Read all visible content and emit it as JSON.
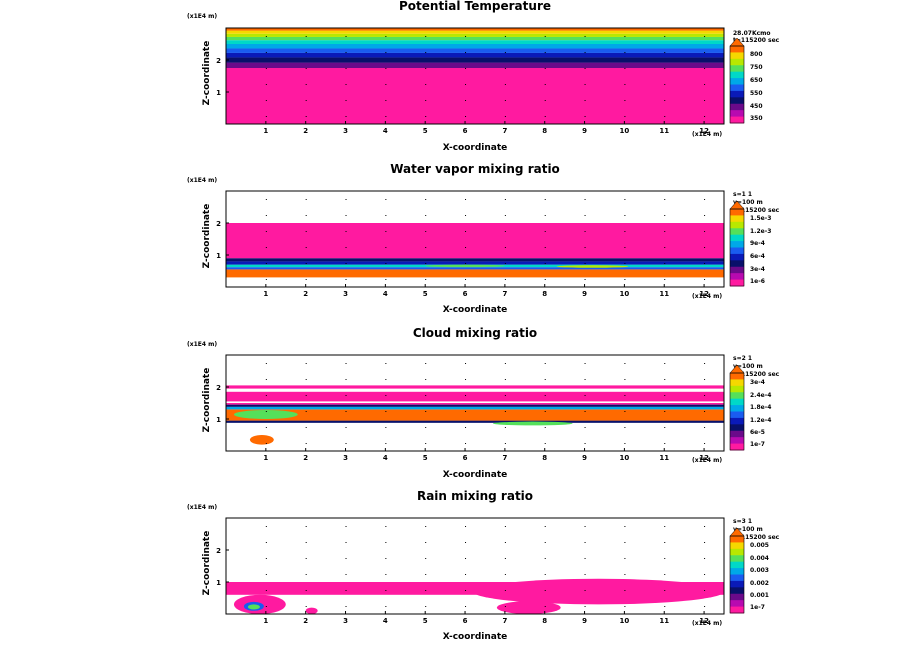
{
  "unit_label": "(x1E4 m)",
  "panels": [
    {
      "title": "Potential Temperature",
      "xlabel": "X-coordinate",
      "ylabel": "Z-coordinate",
      "info": [
        "28.07Kcmo",
        "t=115200 sec"
      ],
      "legend_labels": [
        "800",
        "750",
        "650",
        "550",
        "450",
        "350"
      ],
      "colors": [
        "#ff6a00",
        "#f5d800",
        "#b8e800",
        "#55e05a",
        "#00d8c8",
        "#00a8e8",
        "#1a5cf0",
        "#0a1ab8",
        "#08106a",
        "#6a0a8a",
        "#b80ab0",
        "#ff1aa0"
      ]
    },
    {
      "title": "Water vapor mixing ratio",
      "xlabel": "X-coordinate",
      "ylabel": "Z-coordinate",
      "info": [
        "s=1 1",
        "y=100 m",
        "t=115200 sec"
      ],
      "legend_labels": [
        "1.5e-3",
        "1.2e-3",
        "9e-4",
        "6e-4",
        "3e-4",
        "1e-6"
      ],
      "colors": [
        "#ff6a00",
        "#f5d800",
        "#b8e800",
        "#55e05a",
        "#00d8c8",
        "#00a8e8",
        "#1a5cf0",
        "#0a1ab8",
        "#08106a",
        "#6a0a8a",
        "#b80ab0",
        "#ff1aa0"
      ]
    },
    {
      "title": "Cloud mixing ratio",
      "xlabel": "X-coordinate",
      "ylabel": "Z-coordinate",
      "info": [
        "s=2 1",
        "y=100 m",
        "t=115200 sec"
      ],
      "legend_labels": [
        "3e-4",
        "2.4e-4",
        "1.8e-4",
        "1.2e-4",
        "6e-5",
        "1e-7"
      ],
      "colors": [
        "#ff6a00",
        "#f5d800",
        "#b8e800",
        "#55e05a",
        "#00d8c8",
        "#00a8e8",
        "#1a5cf0",
        "#0a1ab8",
        "#08106a",
        "#6a0a8a",
        "#b80ab0",
        "#ff1aa0"
      ]
    },
    {
      "title": "Rain mixing ratio",
      "xlabel": "X-coordinate",
      "ylabel": "Z-coordinate",
      "info": [
        "s=3 1",
        "y=100 m",
        "t=115200 sec"
      ],
      "legend_labels": [
        "0.005",
        "0.004",
        "0.003",
        "0.002",
        "0.001",
        "1e-7"
      ],
      "colors": [
        "#ff6a00",
        "#f5d800",
        "#b8e800",
        "#55e05a",
        "#00d8c8",
        "#00a8e8",
        "#1a5cf0",
        "#0a1ab8",
        "#08106a",
        "#6a0a8a",
        "#b80ab0",
        "#ff1aa0"
      ]
    }
  ],
  "chart_data": [
    {
      "type": "heatmap",
      "title": "Potential Temperature",
      "xlabel": "X-coordinate",
      "ylabel": "Z-coordinate",
      "x_unit": "x1E4 m",
      "z_unit": "x1E4 m",
      "xlim": [
        0,
        12.5
      ],
      "ylim": [
        0,
        3
      ],
      "xticks": [
        1,
        2,
        3,
        4,
        5,
        6,
        7,
        8,
        9,
        10,
        11,
        12
      ],
      "yticks": [
        1,
        2
      ],
      "colorbar": [
        "350",
        "450",
        "550",
        "650",
        "750",
        "800"
      ],
      "layers": [
        {
          "from": 0,
          "to": 1.75,
          "level": 11
        },
        {
          "from": 1.75,
          "to": 1.92,
          "level": 9
        },
        {
          "from": 1.92,
          "to": 2.08,
          "level": 8
        },
        {
          "from": 2.08,
          "to": 2.22,
          "level": 7
        },
        {
          "from": 2.22,
          "to": 2.36,
          "level": 6
        },
        {
          "from": 2.36,
          "to": 2.5,
          "level": 5
        },
        {
          "from": 2.5,
          "to": 2.62,
          "level": 4
        },
        {
          "from": 2.62,
          "to": 2.72,
          "level": 3
        },
        {
          "from": 2.72,
          "to": 2.82,
          "level": 2
        },
        {
          "from": 2.82,
          "to": 2.92,
          "level": 1
        },
        {
          "from": 2.92,
          "to": 3.0,
          "level": 0
        }
      ],
      "blobs": []
    },
    {
      "type": "heatmap",
      "title": "Water vapor mixing ratio",
      "xlabel": "X-coordinate",
      "ylabel": "Z-coordinate",
      "x_unit": "x1E4 m",
      "z_unit": "x1E4 m",
      "xlim": [
        0,
        12.5
      ],
      "ylim": [
        0,
        3
      ],
      "xticks": [
        1,
        2,
        3,
        4,
        5,
        6,
        7,
        8,
        9,
        10,
        11,
        12
      ],
      "yticks": [
        1,
        2
      ],
      "colorbar": [
        "1e-6",
        "3e-4",
        "6e-4",
        "9e-4",
        "1.2e-3",
        "1.5e-3"
      ],
      "layers": [
        {
          "from": 0.3,
          "to": 0.55,
          "level": 0
        },
        {
          "from": 0.55,
          "to": 0.62,
          "level": 6
        },
        {
          "from": 0.62,
          "to": 0.7,
          "level": 4
        },
        {
          "from": 0.7,
          "to": 0.8,
          "level": 7
        },
        {
          "from": 0.8,
          "to": 0.9,
          "level": 8
        },
        {
          "from": 0.9,
          "to": 2.0,
          "level": 11
        }
      ],
      "blobs": [
        {
          "x": 5.0,
          "z": 0.62,
          "w": 2.0,
          "h": 0.08,
          "level": 3
        },
        {
          "x": 8.3,
          "z": 0.6,
          "w": 1.8,
          "h": 0.08,
          "level": 2
        }
      ]
    },
    {
      "type": "heatmap",
      "title": "Cloud mixing ratio",
      "xlabel": "X-coordinate",
      "ylabel": "Z-coordinate",
      "x_unit": "x1E4 m",
      "z_unit": "x1E4 m",
      "xlim": [
        0,
        12.5
      ],
      "ylim": [
        0,
        3
      ],
      "xticks": [
        1,
        2,
        3,
        4,
        5,
        6,
        7,
        8,
        9,
        10,
        11,
        12
      ],
      "yticks": [
        1,
        2
      ],
      "colorbar": [
        "1e-7",
        "6e-5",
        "1.2e-4",
        "1.8e-4",
        "2.4e-4",
        "3e-4"
      ],
      "layers": [
        {
          "from": 0.88,
          "to": 0.95,
          "level": 8
        },
        {
          "from": 0.95,
          "to": 1.3,
          "level": 0
        },
        {
          "from": 1.3,
          "to": 1.38,
          "level": 5
        },
        {
          "from": 1.38,
          "to": 1.45,
          "level": 8
        },
        {
          "from": 1.45,
          "to": 1.5,
          "level": 11
        },
        {
          "from": 1.55,
          "to": 1.85,
          "level": 11
        },
        {
          "from": 1.95,
          "to": 2.05,
          "level": 11
        }
      ],
      "blobs": [
        {
          "x": 0.2,
          "z": 1.0,
          "w": 1.6,
          "h": 0.28,
          "level": 3
        },
        {
          "x": 0.6,
          "z": 0.2,
          "w": 0.6,
          "h": 0.3,
          "level": 0
        },
        {
          "x": 6.7,
          "z": 0.8,
          "w": 2.0,
          "h": 0.12,
          "level": 3
        }
      ]
    },
    {
      "type": "heatmap",
      "title": "Rain mixing ratio",
      "xlabel": "X-coordinate",
      "ylabel": "Z-coordinate",
      "x_unit": "x1E4 m",
      "z_unit": "x1E4 m",
      "xlim": [
        0,
        12.5
      ],
      "ylim": [
        0,
        3
      ],
      "xticks": [
        1,
        2,
        3,
        4,
        5,
        6,
        7,
        8,
        9,
        10,
        11,
        12
      ],
      "yticks": [
        1,
        2
      ],
      "colorbar": [
        "1e-7",
        "0.001",
        "0.002",
        "0.003",
        "0.004",
        "0.005"
      ],
      "layers": [
        {
          "from": 0.6,
          "to": 1.0,
          "level": 11
        }
      ],
      "blobs": [
        {
          "x": 6.2,
          "z": 0.3,
          "w": 6.3,
          "h": 0.8,
          "level": 11
        },
        {
          "x": 6.8,
          "z": 0.0,
          "w": 1.6,
          "h": 0.4,
          "level": 11
        },
        {
          "x": 0.2,
          "z": 0.0,
          "w": 1.3,
          "h": 0.6,
          "level": 11
        },
        {
          "x": 0.45,
          "z": 0.1,
          "w": 0.5,
          "h": 0.28,
          "level": 6
        },
        {
          "x": 0.55,
          "z": 0.14,
          "w": 0.3,
          "h": 0.16,
          "level": 3
        },
        {
          "x": 2.0,
          "z": 0.0,
          "w": 0.3,
          "h": 0.2,
          "level": 11
        }
      ]
    }
  ]
}
